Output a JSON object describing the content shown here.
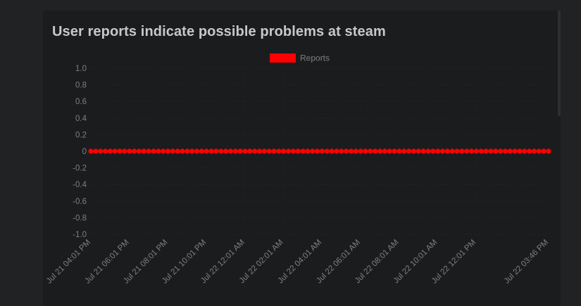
{
  "page": {
    "title": "User reports indicate possible problems at steam"
  },
  "colors": {
    "background": "#202224",
    "card": "#1b1c1e",
    "series": "#ff0000",
    "grid": "#2a2c2e",
    "tick_text": "#7d7f81",
    "title_text": "#c6c8ca"
  },
  "chart_data": {
    "type": "line",
    "title": "User reports indicate possible problems at steam",
    "xlabel": "",
    "ylabel": "",
    "ylim": [
      -1.0,
      1.0
    ],
    "yticks": [
      "1.0",
      "0.8",
      "0.6",
      "0.4",
      "0.2",
      "0",
      "-0.2",
      "-0.4",
      "-0.6",
      "-0.8",
      "-1.0"
    ],
    "xticks": [
      "Jul 21 04:01 PM",
      "Jul 21 06:01 PM",
      "Jul 21 08:01 PM",
      "Jul 21 10:01 PM",
      "Jul 22 12:01 AM",
      "Jul 22 02:01 AM",
      "Jul 22 04:01 AM",
      "Jul 22 06:01 AM",
      "Jul 22 08:01 AM",
      "Jul 22 10:01 AM",
      "Jul 22 12:01 PM",
      "Jul 22 03:46 PM"
    ],
    "legend": {
      "position": "top-center",
      "entries": [
        "Reports"
      ]
    },
    "grid": true,
    "series": [
      {
        "name": "Reports",
        "color": "#ff0000",
        "values": [
          0,
          0,
          0,
          0,
          0,
          0,
          0,
          0,
          0,
          0,
          0,
          0,
          0,
          0,
          0,
          0,
          0,
          0,
          0,
          0,
          0,
          0,
          0,
          0,
          0,
          0,
          0,
          0,
          0,
          0,
          0,
          0,
          0,
          0,
          0,
          0,
          0,
          0,
          0,
          0,
          0,
          0,
          0,
          0,
          0,
          0,
          0,
          0,
          0,
          0,
          0,
          0,
          0,
          0,
          0,
          0,
          0,
          0,
          0,
          0,
          0,
          0,
          0,
          0,
          0,
          0,
          0,
          0,
          0,
          0,
          0,
          0,
          0,
          0,
          0,
          0,
          0,
          0,
          0,
          0,
          0,
          0,
          0,
          0,
          0,
          0,
          0,
          0,
          0,
          0,
          0,
          0,
          0,
          0,
          0,
          0
        ]
      }
    ]
  }
}
